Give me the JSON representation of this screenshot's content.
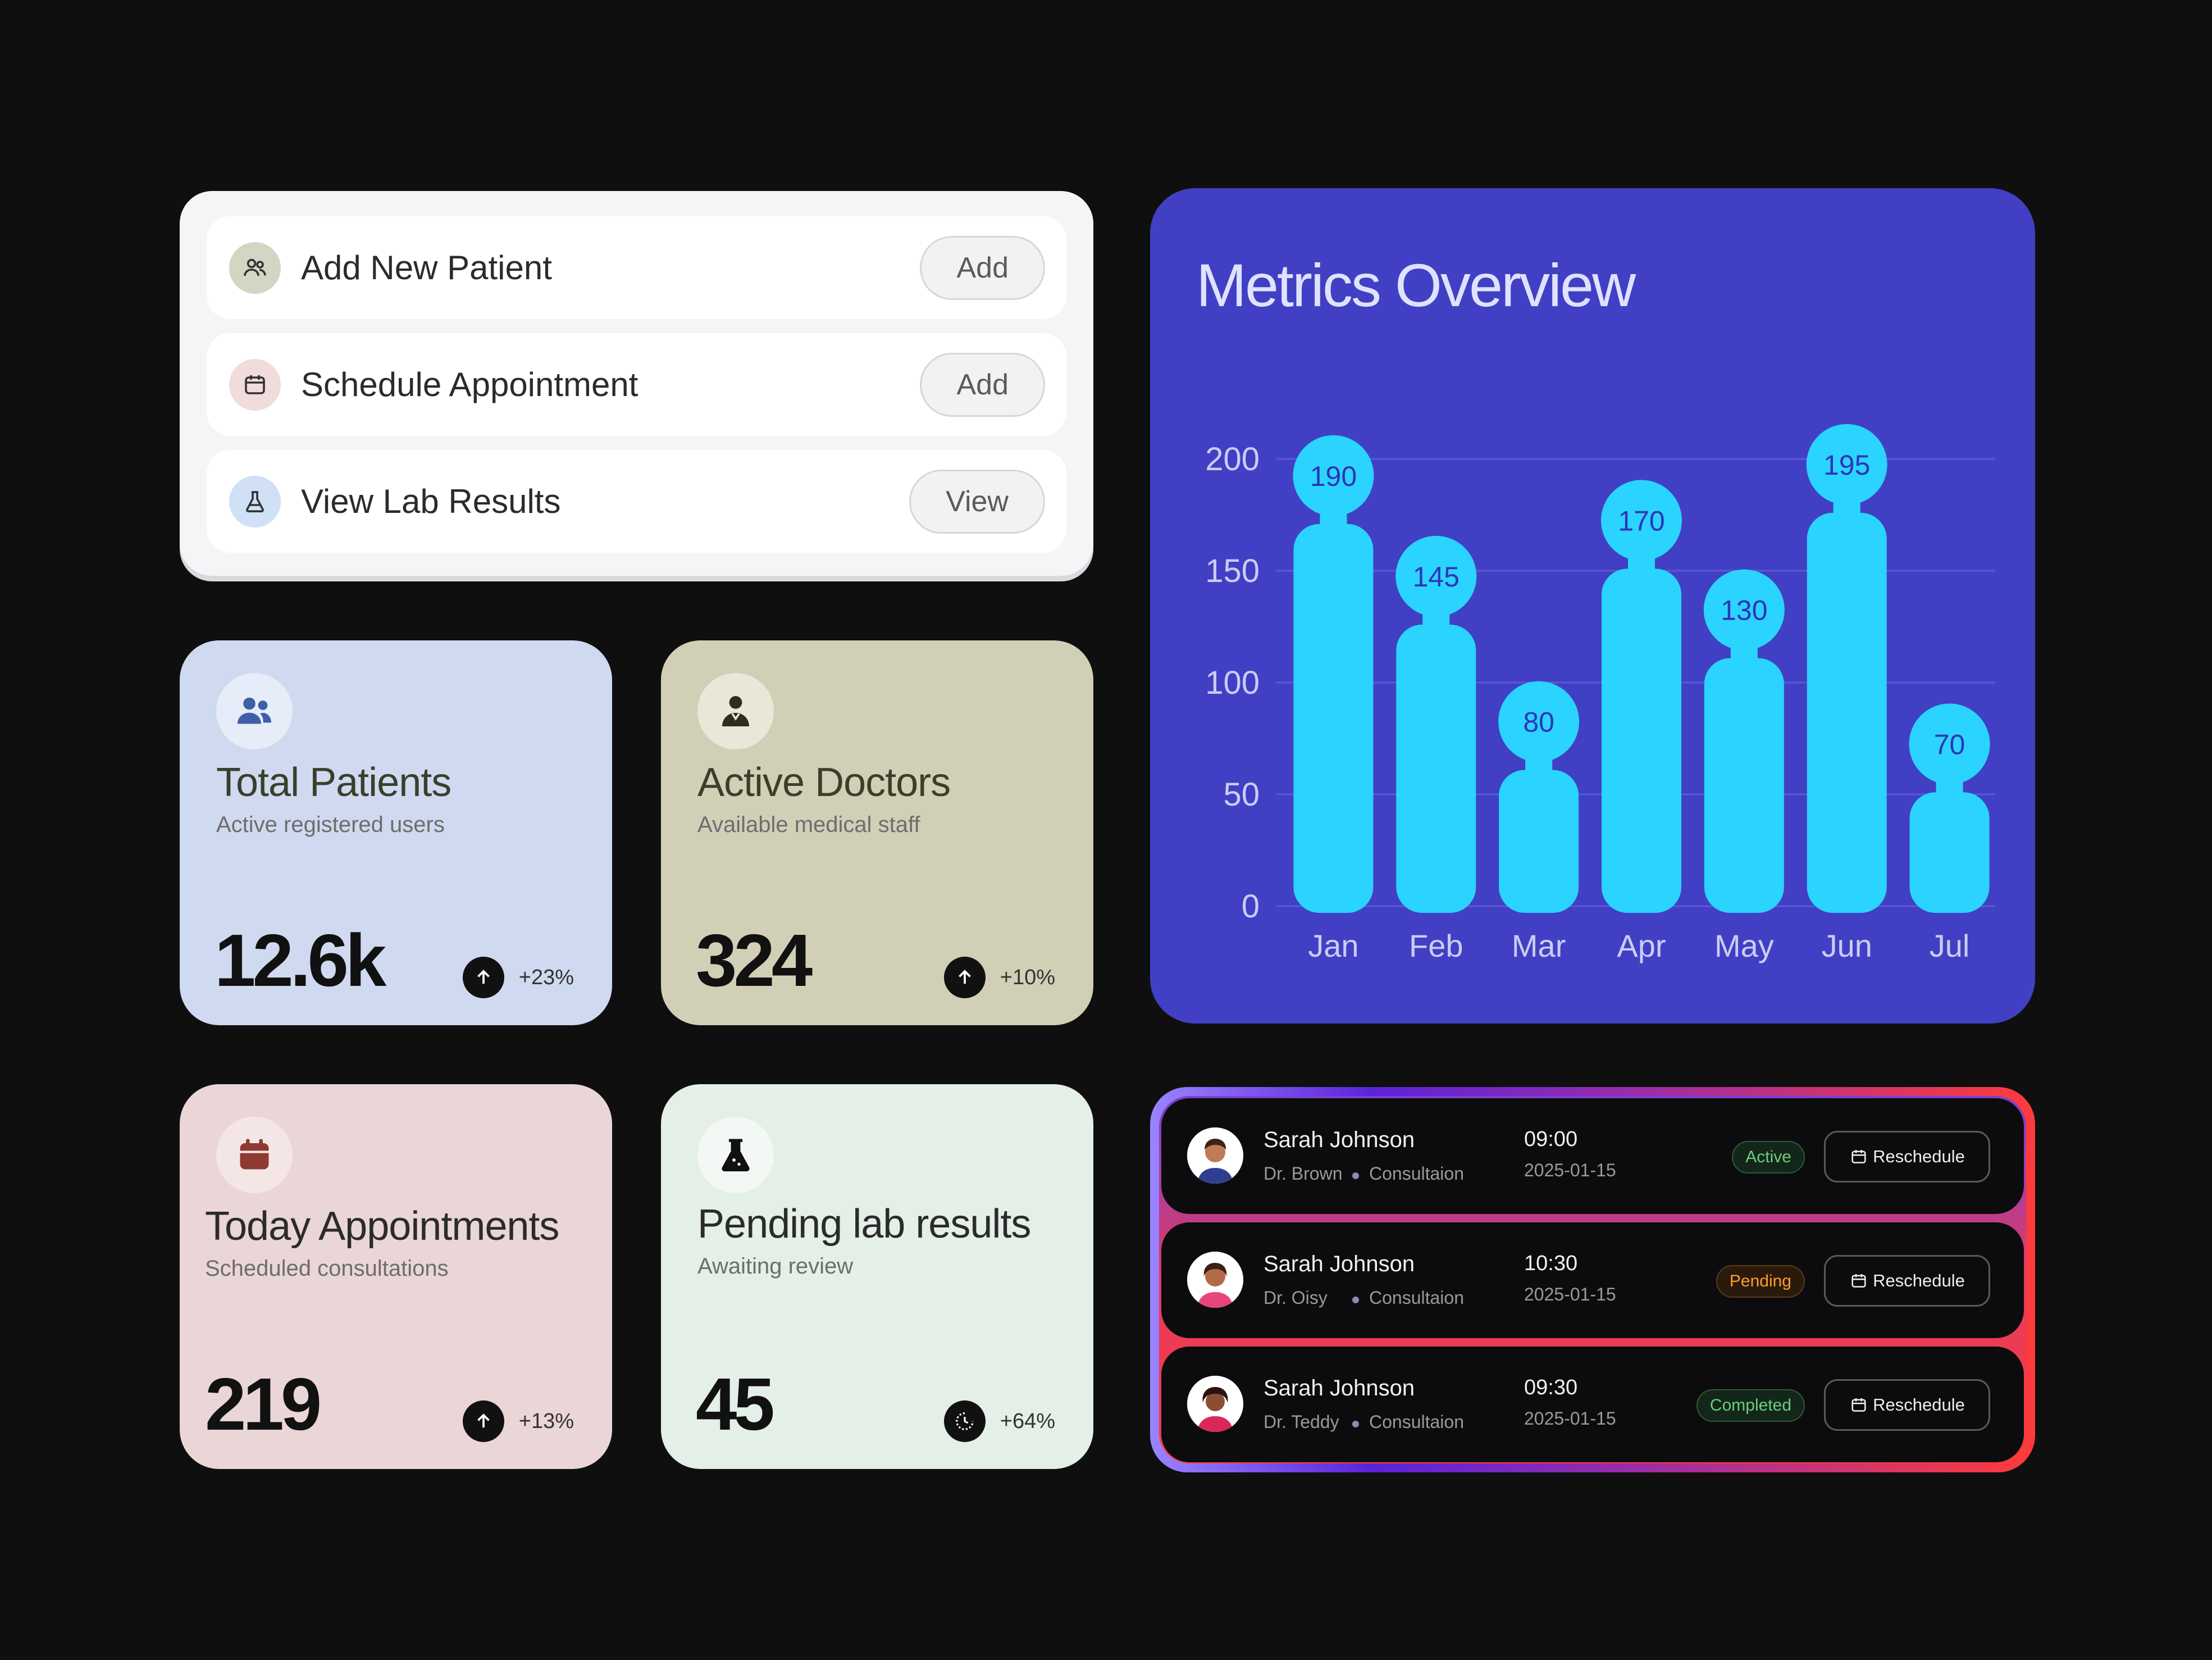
{
  "quick_actions": [
    {
      "label": "Add New Patient",
      "button": "Add",
      "icon": "patients-icon",
      "color": "#d4d5c3"
    },
    {
      "label": "Schedule Appointment",
      "button": "Add",
      "icon": "calendar-icon",
      "color": "#f0dcdc"
    },
    {
      "label": "View Lab Results",
      "button": "View",
      "icon": "flask-icon",
      "color": "#cfe0f7"
    }
  ],
  "stats": {
    "patients": {
      "title": "Total Patients",
      "subtitle": "Active registered users",
      "value": "12.6k",
      "trend": "+23%"
    },
    "doctors": {
      "title": "Active Doctors",
      "subtitle": "Available medical staff",
      "value": "324",
      "trend": "+10%"
    },
    "appointments": {
      "title": "Today Appointments",
      "subtitle": "Scheduled consultations",
      "value": "219",
      "trend": "+13%"
    },
    "lab": {
      "title": "Pending lab results",
      "subtitle": "Awaiting review",
      "value": "45",
      "trend": "+64%"
    }
  },
  "metrics": {
    "title": "Metrics Overview"
  },
  "chart_data": {
    "type": "bar",
    "title": "Metrics Overview",
    "categories": [
      "Jan",
      "Feb",
      "Mar",
      "Apr",
      "May",
      "Jun",
      "Jul"
    ],
    "values": [
      190,
      145,
      80,
      170,
      130,
      195,
      70
    ],
    "yticks": [
      "0",
      "50",
      "100",
      "150",
      "200"
    ],
    "ylim": [
      0,
      200
    ],
    "grid": true,
    "bar_color": "#2ad4ff"
  },
  "appointments": [
    {
      "name": "Sarah Johnson",
      "doctor": "Dr. Brown",
      "type": "Consultaion",
      "time": "09:00",
      "date": "2025-01-15",
      "status": "Active",
      "action": "Reschedule"
    },
    {
      "name": "Sarah Johnson",
      "doctor": "Dr. Oisy",
      "type": "Consultaion",
      "time": "10:30",
      "date": "2025-01-15",
      "status": "Pending",
      "action": "Reschedule"
    },
    {
      "name": "Sarah Johnson",
      "doctor": "Dr. Teddy",
      "type": "Consultaion",
      "time": "09:30",
      "date": "2025-01-15",
      "status": "Completed",
      "action": "Reschedule"
    }
  ]
}
